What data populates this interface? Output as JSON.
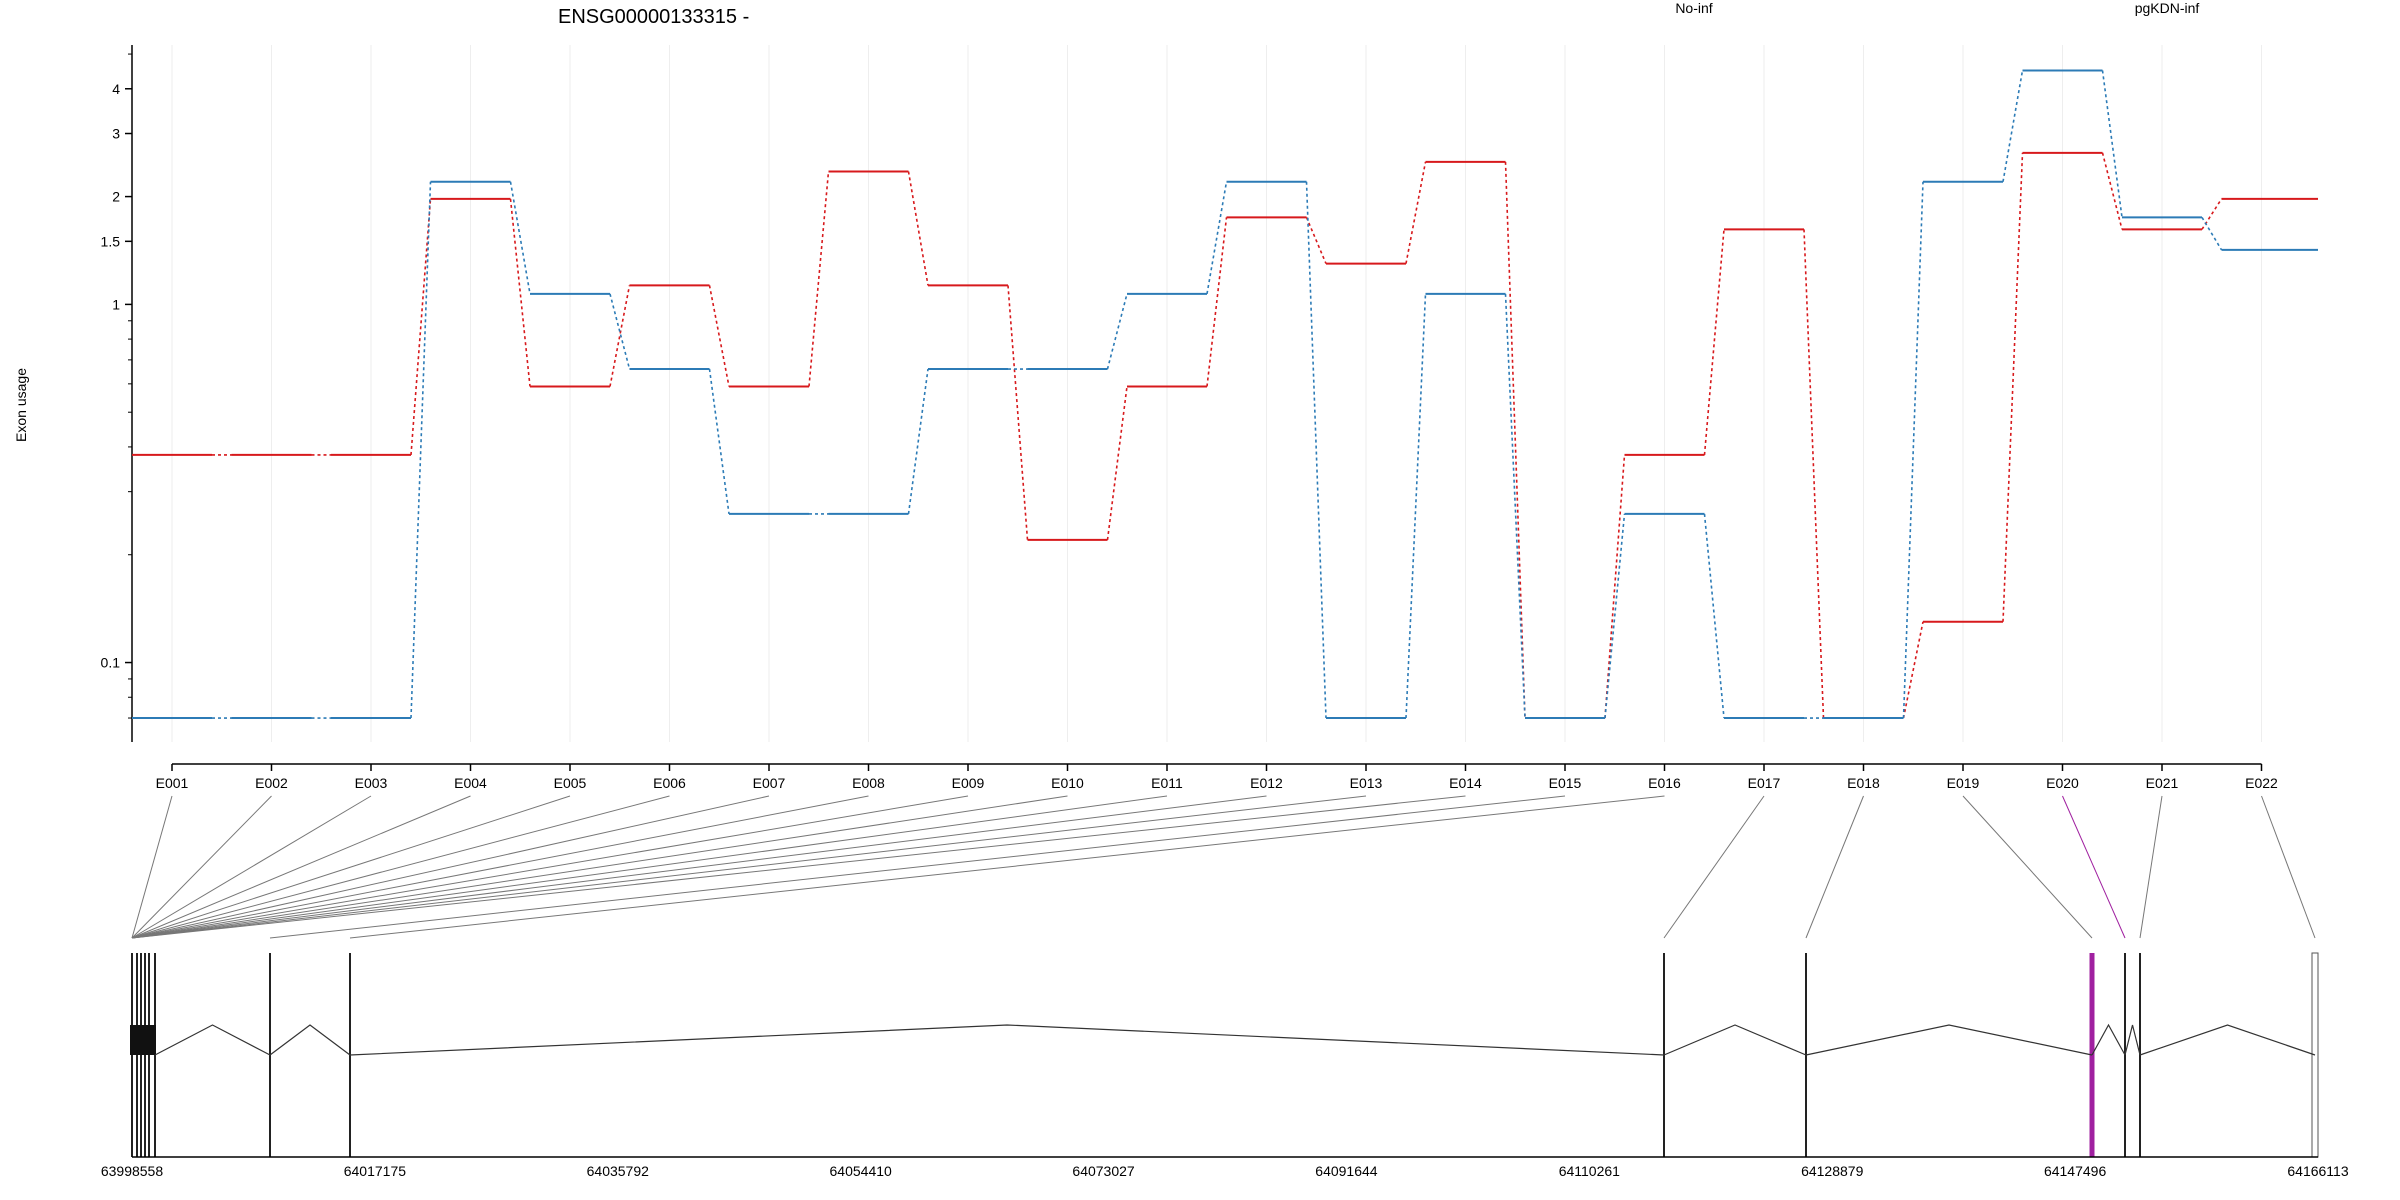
{
  "chart_data": {
    "type": "line",
    "title": "ENSG00000133315 -",
    "ylabel": "Exon usage",
    "yscale": "log",
    "ylim": [
      0.06,
      5.3
    ],
    "yticks": [
      0.1,
      1,
      1.5,
      2,
      3,
      4
    ],
    "ytick_labels": [
      "0.1",
      "1",
      "1.5",
      "2",
      "3",
      "4"
    ],
    "categories": [
      "E001",
      "E002",
      "E003",
      "E004",
      "E005",
      "E006",
      "E007",
      "E008",
      "E009",
      "E010",
      "E011",
      "E012",
      "E013",
      "E014",
      "E015",
      "E016",
      "E017",
      "E018",
      "E019",
      "E020",
      "E021",
      "E022"
    ],
    "series": [
      {
        "name": "No-inf",
        "color": "#d7191c",
        "values": [
          0.38,
          0.38,
          0.38,
          1.97,
          0.59,
          1.13,
          0.59,
          2.35,
          1.13,
          0.22,
          0.59,
          1.75,
          1.3,
          2.5,
          0.07,
          0.38,
          1.62,
          0.07,
          0.13,
          2.65,
          1.62,
          1.97
        ]
      },
      {
        "name": "pgKDN-inf",
        "color": "#2c7bb6",
        "values": [
          0.07,
          0.07,
          0.07,
          2.2,
          1.07,
          0.66,
          0.26,
          0.26,
          0.66,
          0.66,
          1.07,
          2.2,
          0.07,
          1.07,
          0.07,
          0.26,
          0.07,
          0.07,
          2.2,
          4.5,
          1.75,
          1.42
        ]
      }
    ],
    "grid": true,
    "legend": "top"
  },
  "gene_model": {
    "x_ticks": [
      "63998558",
      "64017175",
      "64035792",
      "64054410",
      "64073027",
      "64091644",
      "64110261",
      "64128879",
      "64147496",
      "64166113"
    ],
    "highlight_color": "#a020a0",
    "highlight_exon": "E020"
  }
}
